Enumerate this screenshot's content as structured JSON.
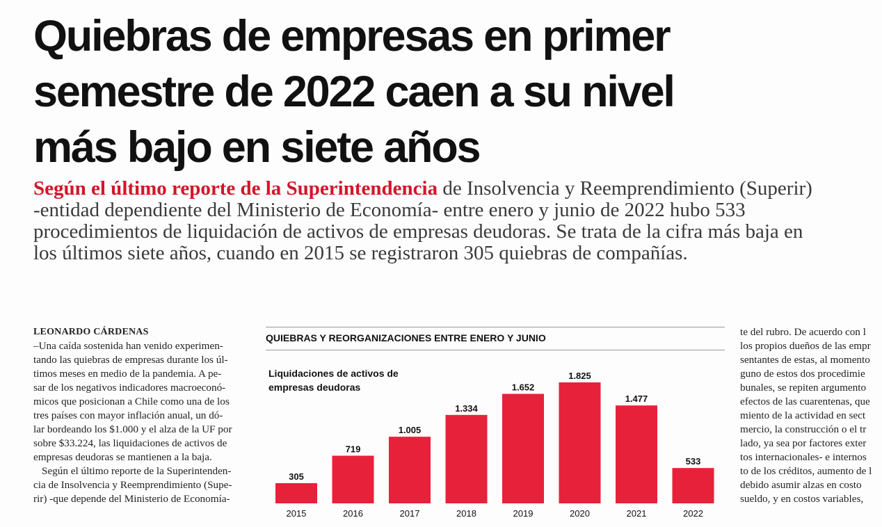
{
  "headline": {
    "lines": [
      "Quiebras de empresas en primer",
      "semestre de 2022 caen a su nivel",
      "más bajo en siete años"
    ]
  },
  "lead": {
    "highlight": "Según el último reporte de la Superintendencia",
    "line1_rest": " de Insolvencia y Reemprendimiento (Superir)",
    "line2": "-entidad dependiente del Ministerio de Economía- entre enero y junio de 2022 hubo 533",
    "line3": "procedimientos de liquidación de activos de empresas deudoras. Se trata de la cifra más baja en",
    "line4": "los últimos siete años, cuando en 2015 se registraron 305 quiebras de compañías."
  },
  "left_column": {
    "byline": "LEONARDO CÁRDENAS",
    "lines": [
      "–Una caída sostenida han venido experimen-",
      "tando las quiebras de empresas durante los úl-",
      "timos meses en medio de la pandemia. A pe-",
      "sar de los negativos indicadores macroeconó-",
      "micos que posicionan a Chile como una de los",
      "tres países con mayor inflación anual, un dó-",
      "lar bordeando los $1.000 y el alza de la UF por",
      "sobre $33.224, las liquidaciones de activos de",
      "empresas deudoras se mantienen a la baja."
    ],
    "para2_lines": [
      "Según el último reporte de la Superintenden-",
      "cia de Insolvencia y Reemprendimiento (Supe-",
      "rir) -que depende del Ministerio de Economía-"
    ]
  },
  "right_column": {
    "lines": [
      "te del rubro. De acuerdo con l",
      "los propios dueños de las empr",
      "sentantes de estas, al momento",
      "guno de estos dos procedimie",
      "bunales, se repiten argumento",
      "efectos de las cuarentenas, que",
      "miento de la actividad en sect",
      "mercio, la construcción o el tr",
      "lado, ya sea por factores exter",
      "tos internacionales- e internos",
      "to de los créditos, aumento de l",
      "debido asumir alzas en costo",
      "sueldo, y en costos variables,"
    ]
  },
  "chart_section": {
    "header": "QUIEBRAS Y REORGANIZACIONES ENTRE ENERO Y JUNIO"
  },
  "chart_data": {
    "type": "bar",
    "title": "Liquidaciones de activos de empresas deudoras",
    "title_lines": [
      "Liquidaciones de activos de",
      "empresas deudoras"
    ],
    "categories": [
      "2015",
      "2016",
      "2017",
      "2018",
      "2019",
      "2020",
      "2021",
      "2022"
    ],
    "values": [
      305,
      719,
      1005,
      1334,
      1652,
      1825,
      1477,
      533
    ],
    "value_labels": [
      "305",
      "719",
      "1.005",
      "1.334",
      "1.652",
      "1.825",
      "1.477",
      "533"
    ],
    "xlabel": "",
    "ylabel": "",
    "ylim": [
      0,
      1825
    ],
    "grid": false,
    "bar_color": "#e8213a"
  }
}
